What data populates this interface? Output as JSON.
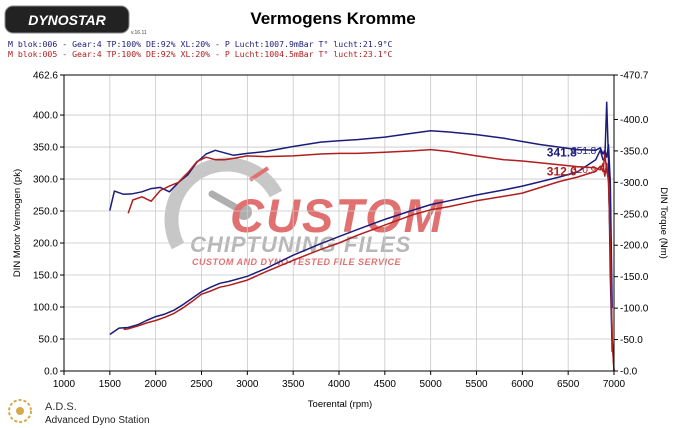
{
  "logo_text": "DYNOSTAR",
  "logo_sub": "v.16.11",
  "footer_brand": "A.D.S.",
  "footer_sub": "Advanced Dyno Station",
  "watermark": {
    "line1": "CUSTOM",
    "line2": "CHIPTUNING FILES",
    "line3": "CUSTOM AND DYNO-TESTED FILE SERVICE"
  },
  "colors": {
    "blue": "#1c1c7a",
    "red": "#b01e1e",
    "axis": "#000000",
    "grid": "#c8c8c8",
    "plot_bg": "#ffffff",
    "watermark_red": "#d94a4a",
    "watermark_gray": "#a3a3a3"
  },
  "chart_data": {
    "type": "line",
    "title": "Vermogens Kromme",
    "legend": [
      {
        "text": "M blok:006 - Gear:4 TP:100% DE:92% XL:20%     - P Lucht:1007.9mBar T° lucht:21.9°C",
        "color": "#1c1c7a"
      },
      {
        "text": "M blok:005 - Gear:4 TP:100% DE:92% XL:20%     - P Lucht:1004.5mBar T° lucht:23.1°C",
        "color": "#b01e1e"
      }
    ],
    "xlabel": "Toerental (rpm)",
    "ylabel_left": "DIN Motor Vermogen (pk)",
    "ylabel_right": "DIN Torque (Nm)",
    "xlim": [
      1000,
      7000
    ],
    "ylim_left": [
      0,
      462.6
    ],
    "ylim_right": [
      0,
      470.7
    ],
    "x_ticks": [
      1000,
      1500,
      2000,
      2500,
      3000,
      3500,
      4000,
      4500,
      5000,
      5500,
      6000,
      6500,
      7000
    ],
    "left_ticks": [
      0.0,
      50.0,
      100.0,
      150.0,
      200.0,
      250.0,
      300.0,
      350.0,
      400.0,
      462.6
    ],
    "right_ticks": [
      0.0,
      50.0,
      100.0,
      150.0,
      200.0,
      250.0,
      300.0,
      350.0,
      400.0,
      470.7
    ],
    "grid": true,
    "series": [
      {
        "color": "#1c1c7a",
        "axis": "left",
        "x": [
          1500,
          1600,
          1700,
          1800,
          1900,
          2000,
          2100,
          2200,
          2300,
          2400,
          2500,
          2600,
          2700,
          2800,
          3000,
          3200,
          3500,
          3800,
          4000,
          4200,
          4500,
          4800,
          5000,
          5200,
          5500,
          5800,
          6000,
          6200,
          6400,
          6600,
          6800,
          6850,
          6880,
          6900,
          6920,
          6940,
          6960,
          6980
        ],
        "y": [
          57,
          67,
          68,
          72,
          79,
          85,
          89,
          95,
          104,
          114,
          124,
          131,
          137,
          140,
          148,
          160,
          181,
          199,
          210,
          221,
          237,
          251,
          260,
          266,
          275,
          283,
          289,
          296,
          303,
          311,
          330,
          345,
          330,
          330,
          420,
          330,
          150,
          30
        ]
      },
      {
        "color": "#b01e1e",
        "axis": "left",
        "x": [
          1650,
          1700,
          1800,
          1900,
          2000,
          2100,
          2200,
          2300,
          2400,
          2500,
          2600,
          2700,
          2800,
          3000,
          3200,
          3500,
          3800,
          4000,
          4200,
          4500,
          4800,
          5000,
          5200,
          5500,
          5800,
          6000,
          6200,
          6400,
          6600,
          6800,
          6850,
          6880,
          6900,
          6920,
          6940,
          6960,
          6980,
          7000
        ],
        "y": [
          65,
          66,
          70,
          75,
          79,
          84,
          90,
          99,
          109,
          120,
          125,
          131,
          134,
          142,
          155,
          173,
          190,
          200,
          212,
          228,
          244,
          252,
          257,
          266,
          273,
          278,
          287,
          296,
          303,
          312,
          320,
          312,
          340,
          312,
          300,
          200,
          50,
          0
        ]
      },
      {
        "color": "#1c1c7a",
        "axis": "right",
        "x": [
          1500,
          1550,
          1650,
          1750,
          1850,
          1950,
          2050,
          2150,
          2250,
          2350,
          2450,
          2550,
          2650,
          2750,
          2850,
          3000,
          3200,
          3500,
          3800,
          4000,
          4200,
          4500,
          4800,
          5000,
          5200,
          5500,
          5800,
          6000,
          6200,
          6400,
          6600,
          6800,
          6850,
          6880,
          6900,
          6920,
          6940,
          6960,
          6980
        ],
        "y": [
          255,
          286,
          281,
          282,
          285,
          290,
          292,
          285,
          300,
          312,
          332,
          345,
          351,
          347,
          343,
          346,
          349,
          357,
          364,
          366,
          368,
          372,
          378,
          382,
          380,
          376,
          370,
          365,
          360,
          356,
          352,
          351,
          355,
          345,
          351,
          340,
          360,
          300,
          100
        ]
      },
      {
        "color": "#b01e1e",
        "axis": "right",
        "x": [
          1700,
          1750,
          1850,
          1950,
          2050,
          2150,
          2250,
          2350,
          2450,
          2550,
          2650,
          2750,
          2850,
          3000,
          3200,
          3500,
          3800,
          4000,
          4200,
          4500,
          4800,
          5000,
          5200,
          5500,
          5800,
          6000,
          6200,
          6400,
          6600,
          6800,
          6850,
          6880,
          6900,
          6920,
          6940,
          6960,
          6980,
          7000
        ],
        "y": [
          251,
          272,
          277,
          270,
          287,
          294,
          300,
          315,
          333,
          340,
          336,
          336,
          338,
          342,
          341,
          342,
          345,
          346,
          346,
          348,
          350,
          352,
          349,
          342,
          336,
          334,
          331,
          328,
          325,
          323,
          320,
          330,
          310,
          330,
          300,
          200,
          50,
          0
        ]
      }
    ],
    "annotations": [
      {
        "text": "341.8",
        "color": "#1c1c7a",
        "x": 6900,
        "y": 341.8,
        "axis": "left",
        "side": "left",
        "bold": true
      },
      {
        "text": "312.0",
        "color": "#b01e1e",
        "x": 6900,
        "y": 312.0,
        "axis": "left",
        "side": "left",
        "bold": true
      },
      {
        "text": "351.8",
        "color": "#1c1c7a",
        "x": 6850,
        "y": 351.8,
        "axis": "right",
        "side": "right",
        "bold": false
      },
      {
        "text": "320.9",
        "color": "#b01e1e",
        "x": 6850,
        "y": 320.9,
        "axis": "right",
        "side": "right",
        "bold": false
      }
    ]
  }
}
